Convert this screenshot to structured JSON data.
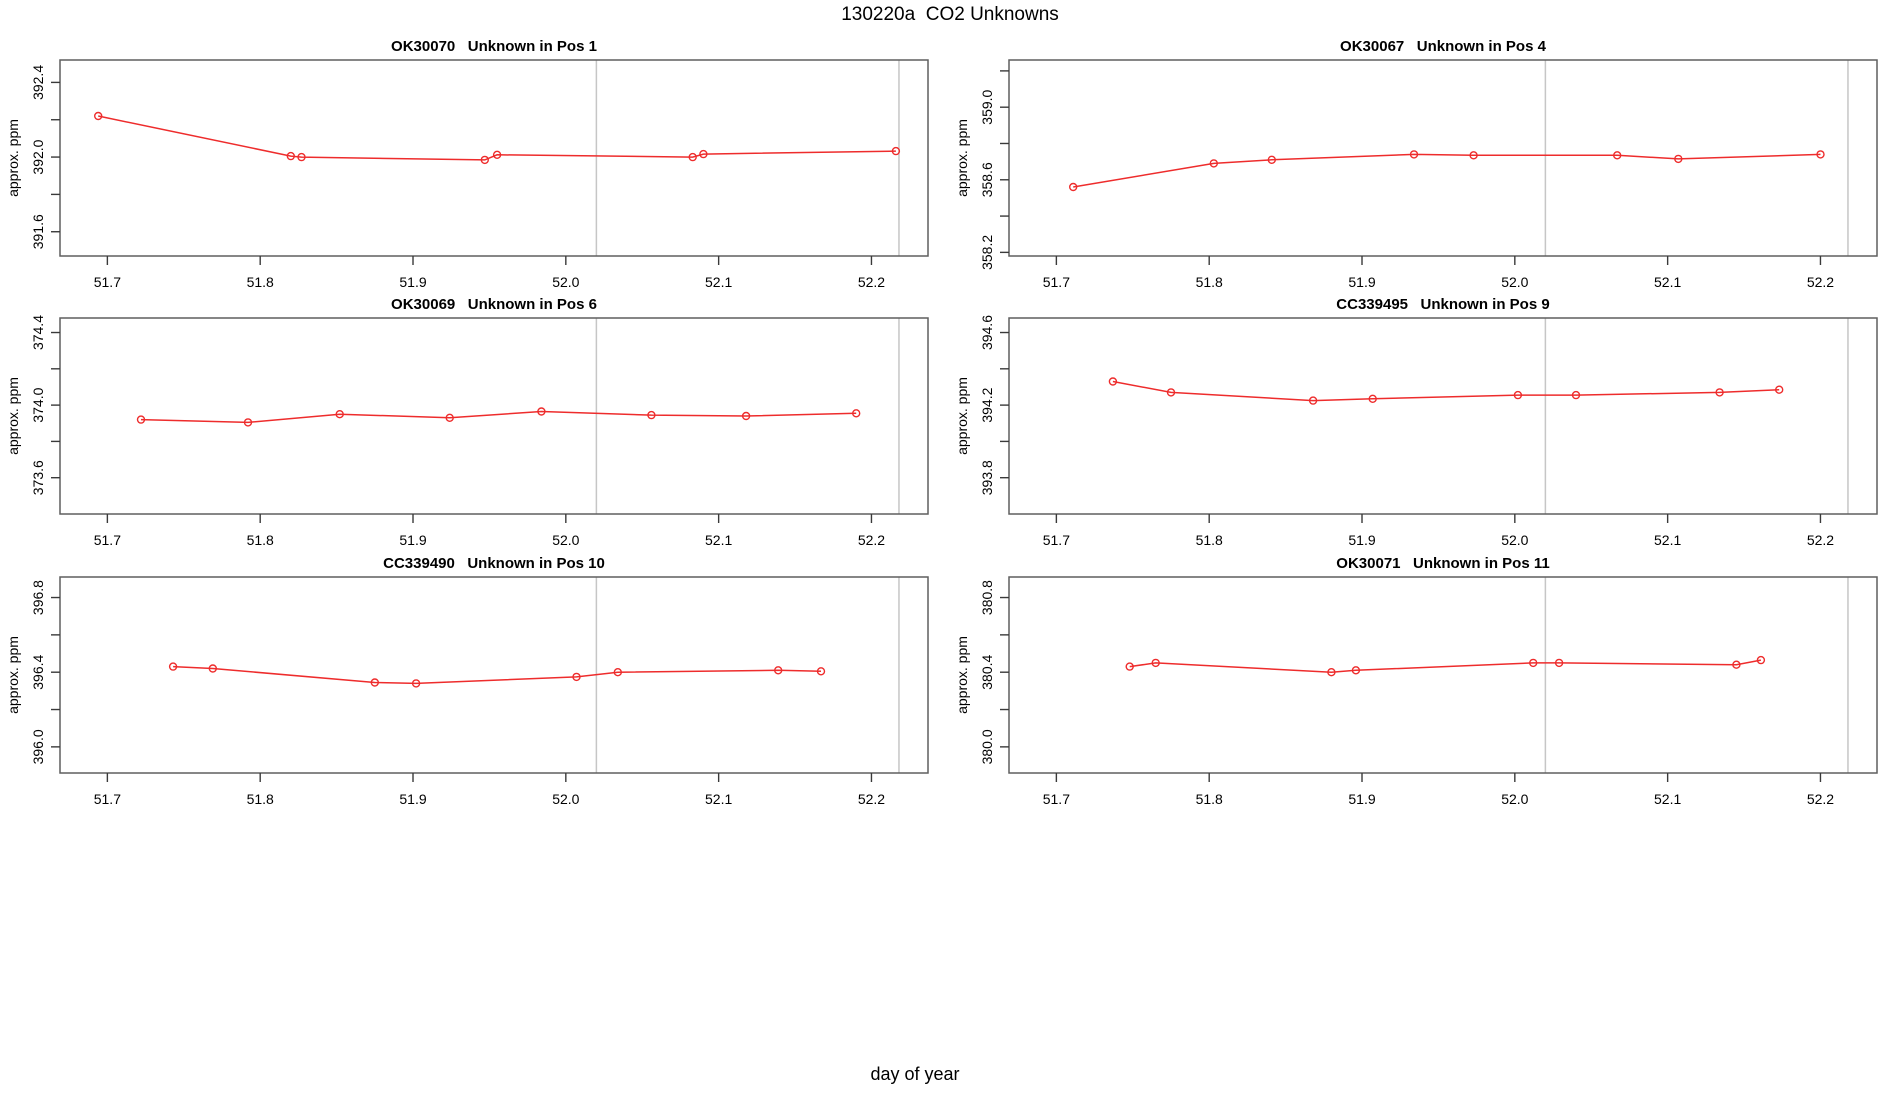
{
  "header": {
    "title": "130220a  CO2 Unknowns"
  },
  "footer": {
    "xlabel": "day of year"
  },
  "style": {
    "series_color": "#ee2c2c",
    "vline_color": "#c6c6c6",
    "box_color": "#5f5f5f",
    "tick_color": "#3a3a3a",
    "text_color": "#000000"
  },
  "chart_data": [
    {
      "type": "line",
      "sample_id": "OK30070",
      "position_label": "Unknown in Pos 1",
      "title": "OK30070   Unknown in Pos 1",
      "ylabel": "approx. ppm",
      "xlabel": "day of year",
      "xlim": [
        51.669,
        52.237
      ],
      "ylim": [
        391.47,
        392.52
      ],
      "xticks": [
        "51.7",
        "51.8",
        "51.9",
        "52.0",
        "52.1",
        "52.2"
      ],
      "yticks": [
        "391.6",
        "392.0",
        "392.4"
      ],
      "yticks_minor": [
        391.8,
        392.2
      ],
      "vlines": [
        52.02,
        52.218
      ],
      "grid": false,
      "x": [
        51.694,
        51.82,
        51.827,
        51.947,
        51.955,
        52.083,
        52.09,
        52.216
      ],
      "y": [
        392.22,
        392.005,
        392.0,
        391.985,
        392.012,
        392.0,
        392.016,
        392.032
      ]
    },
    {
      "type": "line",
      "sample_id": "OK30067",
      "position_label": "Unknown in Pos 4",
      "title": "OK30067   Unknown in Pos 4",
      "ylabel": "approx. ppm",
      "xlabel": "day of year",
      "xlim": [
        51.669,
        52.237
      ],
      "ylim": [
        358.18,
        359.26
      ],
      "xticks": [
        "51.7",
        "51.8",
        "51.9",
        "52.0",
        "52.1",
        "52.2"
      ],
      "yticks": [
        "358.2",
        "358.6",
        "359.0"
      ],
      "yticks_minor": [
        358.4,
        358.8,
        359.2
      ],
      "vlines": [
        52.02,
        52.218
      ],
      "grid": false,
      "x": [
        51.711,
        51.803,
        51.841,
        51.934,
        51.973,
        52.067,
        52.107,
        52.2
      ],
      "y": [
        358.56,
        358.69,
        358.71,
        358.74,
        358.735,
        358.735,
        358.715,
        358.74
      ]
    },
    {
      "type": "line",
      "sample_id": "OK30069",
      "position_label": "Unknown in Pos 6",
      "title": "OK30069   Unknown in Pos 6",
      "ylabel": "approx. ppm",
      "xlabel": "day of year",
      "xlim": [
        51.669,
        52.237
      ],
      "ylim": [
        373.4,
        374.48
      ],
      "xticks": [
        "51.7",
        "51.8",
        "51.9",
        "52.0",
        "52.1",
        "52.2"
      ],
      "yticks": [
        "373.6",
        "374.0",
        "374.4"
      ],
      "yticks_minor": [
        373.8,
        374.2
      ],
      "vlines": [
        52.02,
        52.218
      ],
      "grid": false,
      "x": [
        51.722,
        51.792,
        51.852,
        51.924,
        51.984,
        52.056,
        52.118,
        52.19
      ],
      "y": [
        373.92,
        373.905,
        373.95,
        373.93,
        373.965,
        373.945,
        373.94,
        373.955
      ]
    },
    {
      "type": "line",
      "sample_id": "CC339495",
      "position_label": "Unknown in Pos 9",
      "title": "CC339495   Unknown in Pos 9",
      "ylabel": "approx. ppm",
      "xlabel": "day of year",
      "xlim": [
        51.669,
        52.237
      ],
      "ylim": [
        393.6,
        394.68
      ],
      "xticks": [
        "51.7",
        "51.8",
        "51.9",
        "52.0",
        "52.1",
        "52.2"
      ],
      "yticks": [
        "393.8",
        "394.2",
        "394.6"
      ],
      "yticks_minor": [
        394.0,
        394.4
      ],
      "vlines": [
        52.02,
        52.218
      ],
      "grid": false,
      "x": [
        51.737,
        51.775,
        51.868,
        51.907,
        52.002,
        52.04,
        52.134,
        52.173
      ],
      "y": [
        394.33,
        394.27,
        394.225,
        394.235,
        394.255,
        394.255,
        394.27,
        394.285
      ]
    },
    {
      "type": "line",
      "sample_id": "CC339490",
      "position_label": "Unknown in Pos 10",
      "title": "CC339490   Unknown in Pos 10",
      "ylabel": "approx. ppm",
      "xlabel": "day of year",
      "xlim": [
        51.669,
        52.237
      ],
      "ylim": [
        395.86,
        396.91
      ],
      "xticks": [
        "51.7",
        "51.8",
        "51.9",
        "52.0",
        "52.1",
        "52.2"
      ],
      "yticks": [
        "396.0",
        "396.4",
        "396.8"
      ],
      "yticks_minor": [
        396.2,
        396.6
      ],
      "vlines": [
        52.02,
        52.218
      ],
      "grid": false,
      "x": [
        51.743,
        51.769,
        51.875,
        51.902,
        52.007,
        52.034,
        52.139,
        52.167
      ],
      "y": [
        396.43,
        396.42,
        396.345,
        396.34,
        396.375,
        396.4,
        396.41,
        396.405
      ]
    },
    {
      "type": "line",
      "sample_id": "OK30071",
      "position_label": "Unknown in Pos 11",
      "title": "OK30071   Unknown in Pos 11",
      "ylabel": "approx. ppm",
      "xlabel": "day of year",
      "xlim": [
        51.669,
        52.237
      ],
      "ylim": [
        379.86,
        380.91
      ],
      "xticks": [
        "51.7",
        "51.8",
        "51.9",
        "52.0",
        "52.1",
        "52.2"
      ],
      "yticks": [
        "380.0",
        "380.4",
        "380.8"
      ],
      "yticks_minor": [
        380.2,
        380.6
      ],
      "vlines": [
        52.02,
        52.218
      ],
      "grid": false,
      "x": [
        51.748,
        51.765,
        51.88,
        51.896,
        52.012,
        52.029,
        52.145,
        52.161
      ],
      "y": [
        380.43,
        380.45,
        380.4,
        380.41,
        380.45,
        380.45,
        380.44,
        380.465
      ]
    }
  ]
}
